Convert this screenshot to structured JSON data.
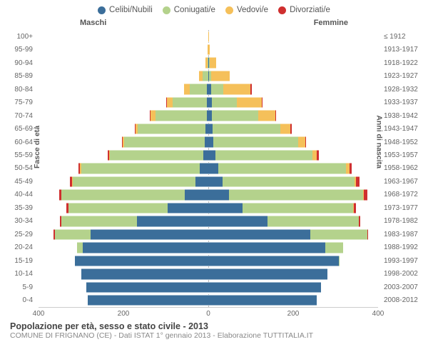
{
  "legend": [
    {
      "label": "Celibi/Nubili",
      "color": "#3b6e9a"
    },
    {
      "label": "Coniugati/e",
      "color": "#b4d28c"
    },
    {
      "label": "Vedovi/e",
      "color": "#f5c05a"
    },
    {
      "label": "Divorziati/e",
      "color": "#cf2f2f"
    }
  ],
  "gender_labels": {
    "male": "Maschi",
    "female": "Femmine"
  },
  "axis_titles": {
    "left": "Fasce di età",
    "right": "Anni di nascita"
  },
  "x_axis": {
    "max": 400,
    "ticks": [
      400,
      200,
      0,
      200,
      400
    ]
  },
  "colors": {
    "celibi": "#3b6e9a",
    "coniugati": "#b4d28c",
    "vedovi": "#f5c05a",
    "divorziati": "#cf2f2f",
    "grid": "#cccccc",
    "centerline": "#bbbbbb",
    "text": "#555555"
  },
  "footer": {
    "title": "Popolazione per età, sesso e stato civile - 2013",
    "subtitle": "COMUNE DI FRIGNANO (CE) - Dati ISTAT 1° gennaio 2013 - Elaborazione TUTTITALIA.IT"
  },
  "rows": [
    {
      "age": "100+",
      "birth": "≤ 1912",
      "m": [
        0,
        0,
        0,
        0
      ],
      "f": [
        0,
        0,
        2,
        0
      ]
    },
    {
      "age": "95-99",
      "birth": "1913-1917",
      "m": [
        0,
        0,
        1,
        0
      ],
      "f": [
        0,
        0,
        4,
        0
      ]
    },
    {
      "age": "90-94",
      "birth": "1918-1922",
      "m": [
        0,
        2,
        4,
        0
      ],
      "f": [
        1,
        2,
        16,
        0
      ]
    },
    {
      "age": "85-89",
      "birth": "1923-1927",
      "m": [
        0,
        14,
        8,
        0
      ],
      "f": [
        1,
        6,
        44,
        0
      ]
    },
    {
      "age": "80-84",
      "birth": "1928-1932",
      "m": [
        3,
        40,
        14,
        0
      ],
      "f": [
        6,
        30,
        64,
        2
      ]
    },
    {
      "age": "75-79",
      "birth": "1933-1937",
      "m": [
        4,
        80,
        14,
        1
      ],
      "f": [
        8,
        60,
        58,
        2
      ]
    },
    {
      "age": "70-74",
      "birth": "1938-1942",
      "m": [
        4,
        120,
        12,
        2
      ],
      "f": [
        8,
        110,
        40,
        2
      ]
    },
    {
      "age": "65-69",
      "birth": "1943-1947",
      "m": [
        6,
        160,
        6,
        2
      ],
      "f": [
        10,
        160,
        24,
        2
      ]
    },
    {
      "age": "60-64",
      "birth": "1948-1952",
      "m": [
        8,
        190,
        4,
        2
      ],
      "f": [
        12,
        200,
        16,
        3
      ]
    },
    {
      "age": "55-59",
      "birth": "1953-1957",
      "m": [
        12,
        220,
        2,
        3
      ],
      "f": [
        16,
        230,
        10,
        4
      ]
    },
    {
      "age": "50-54",
      "birth": "1958-1962",
      "m": [
        20,
        280,
        2,
        4
      ],
      "f": [
        24,
        300,
        8,
        6
      ]
    },
    {
      "age": "45-49",
      "birth": "1963-1967",
      "m": [
        30,
        290,
        1,
        5
      ],
      "f": [
        34,
        310,
        4,
        8
      ]
    },
    {
      "age": "40-44",
      "birth": "1968-1972",
      "m": [
        56,
        290,
        0,
        6
      ],
      "f": [
        48,
        316,
        2,
        8
      ]
    },
    {
      "age": "35-39",
      "birth": "1973-1977",
      "m": [
        96,
        234,
        0,
        4
      ],
      "f": [
        80,
        262,
        1,
        5
      ]
    },
    {
      "age": "30-34",
      "birth": "1978-1982",
      "m": [
        168,
        178,
        0,
        3
      ],
      "f": [
        140,
        214,
        0,
        4
      ]
    },
    {
      "age": "25-29",
      "birth": "1983-1987",
      "m": [
        278,
        84,
        0,
        2
      ],
      "f": [
        240,
        134,
        0,
        2
      ]
    },
    {
      "age": "20-24",
      "birth": "1988-1992",
      "m": [
        296,
        14,
        0,
        0
      ],
      "f": [
        276,
        42,
        0,
        0
      ]
    },
    {
      "age": "15-19",
      "birth": "1993-1997",
      "m": [
        314,
        0,
        0,
        0
      ],
      "f": [
        308,
        2,
        0,
        0
      ]
    },
    {
      "age": "10-14",
      "birth": "1998-2002",
      "m": [
        300,
        0,
        0,
        0
      ],
      "f": [
        280,
        0,
        0,
        0
      ]
    },
    {
      "age": "5-9",
      "birth": "2003-2007",
      "m": [
        288,
        0,
        0,
        0
      ],
      "f": [
        266,
        0,
        0,
        0
      ]
    },
    {
      "age": "0-4",
      "birth": "2008-2012",
      "m": [
        284,
        0,
        0,
        0
      ],
      "f": [
        256,
        0,
        0,
        0
      ]
    }
  ]
}
